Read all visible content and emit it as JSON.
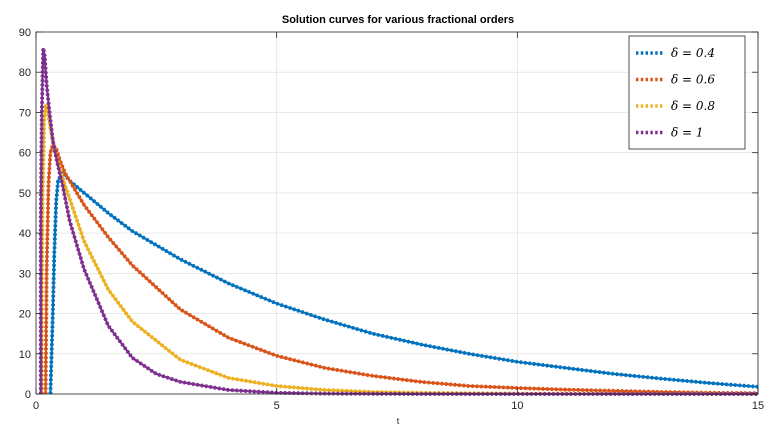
{
  "chart_data": {
    "type": "line",
    "title": "Solution curves for various fractional orders",
    "xlabel": "t",
    "ylabel": "",
    "xlim": [
      0,
      15
    ],
    "ylim": [
      0,
      90
    ],
    "xticks": [
      0,
      5,
      10,
      15
    ],
    "yticks": [
      0,
      10,
      20,
      30,
      40,
      50,
      60,
      70,
      80,
      90
    ],
    "grid": true,
    "legend_position": "top-right",
    "series": [
      {
        "name": "δ = 0.4",
        "color": "#0072BD",
        "x": [
          0.3,
          0.35,
          0.38,
          0.42,
          0.46,
          0.5,
          0.55,
          0.6,
          0.7,
          0.8,
          1,
          1.5,
          2,
          3,
          4,
          5,
          6,
          7,
          8,
          9,
          10,
          11,
          12,
          13,
          14,
          15
        ],
        "y": [
          0,
          20,
          35,
          48,
          53,
          54,
          55,
          54.5,
          53,
          52,
          50,
          45,
          40.5,
          33.5,
          27.5,
          22.5,
          18.5,
          15,
          12.3,
          10,
          8,
          6.5,
          5,
          3.8,
          2.7,
          1.8
        ]
      },
      {
        "name": "δ = 0.6",
        "color": "#D95319",
        "x": [
          0.2,
          0.22,
          0.26,
          0.3,
          0.35,
          0.42,
          0.5,
          0.6,
          0.8,
          1,
          1.5,
          2,
          3,
          4,
          5,
          6,
          7,
          8,
          9,
          10,
          11,
          12,
          13,
          14,
          15
        ],
        "y": [
          0,
          30,
          52,
          60,
          62,
          61,
          58,
          55,
          51,
          47,
          39,
          32,
          21,
          14,
          9.5,
          6.5,
          4.5,
          3,
          2,
          1.5,
          1.1,
          0.8,
          0.5,
          0.3,
          0.2
        ]
      },
      {
        "name": "δ = 0.8",
        "color": "#EDB120",
        "x": [
          0.12,
          0.14,
          0.17,
          0.2,
          0.25,
          0.3,
          0.4,
          0.5,
          0.6,
          0.8,
          1,
          1.5,
          2,
          3,
          4,
          5,
          6,
          7,
          8,
          10,
          12,
          15
        ],
        "y": [
          25,
          50,
          68,
          72,
          70,
          66,
          60,
          56,
          52,
          45,
          38,
          26,
          18,
          8.5,
          4,
          2,
          1,
          0.5,
          0.3,
          0.1,
          0.05,
          0
        ]
      },
      {
        "name": "δ = 1",
        "color": "#7E2F8E",
        "x": [
          0.1,
          0.12,
          0.15,
          0.18,
          0.22,
          0.28,
          0.35,
          0.45,
          0.55,
          0.7,
          1,
          1.5,
          2,
          2.5,
          3,
          4,
          5,
          6,
          7,
          8,
          10,
          15
        ],
        "y": [
          44,
          70,
          86,
          84,
          77,
          70,
          63,
          57,
          52,
          43,
          31,
          17,
          9,
          5,
          3,
          1,
          0.3,
          0.1,
          0.05,
          0,
          0,
          0
        ]
      }
    ]
  }
}
